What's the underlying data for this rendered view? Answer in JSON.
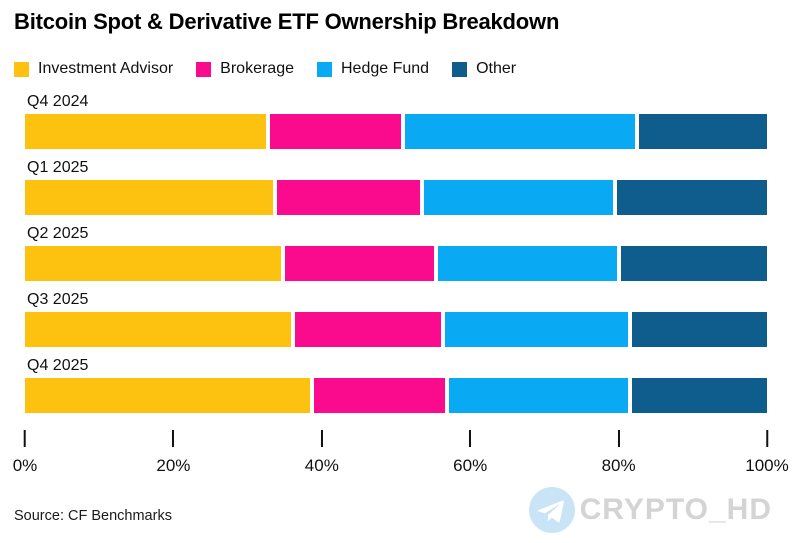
{
  "title": "Bitcoin Spot & Derivative ETF Ownership Breakdown",
  "source": "Source: CF Benchmarks",
  "watermark": {
    "text": "CRYPTO_HD",
    "icon": "telegram-icon"
  },
  "chart_data": {
    "type": "bar",
    "variant": "horizontal-stacked",
    "title": "Bitcoin Spot & Derivative ETF Ownership Breakdown",
    "categories": [
      "Q4 2024",
      "Q1 2025",
      "Q2 2025",
      "Q3 2025",
      "Q4 2025"
    ],
    "series": [
      {
        "name": "Investment Advisor",
        "color": "#FDC20F",
        "values": [
          33,
          34,
          35,
          36.5,
          39
        ]
      },
      {
        "name": "Brokerage",
        "color": "#FA0A8C",
        "values": [
          18,
          19.5,
          20.5,
          20,
          18
        ]
      },
      {
        "name": "Hedge Fund",
        "color": "#0AA9F4",
        "values": [
          31.5,
          26,
          24.5,
          25,
          24.5
        ]
      },
      {
        "name": "Other",
        "color": "#0E5D8C",
        "values": [
          17.5,
          20.5,
          20,
          18.5,
          18.5
        ]
      }
    ],
    "xlabel": "",
    "ylabel": "",
    "xlim": [
      0,
      100
    ],
    "x_ticks": [
      "0%",
      "20%",
      "40%",
      "60%",
      "80%",
      "100%"
    ],
    "grid": false,
    "legend_position": "top"
  }
}
